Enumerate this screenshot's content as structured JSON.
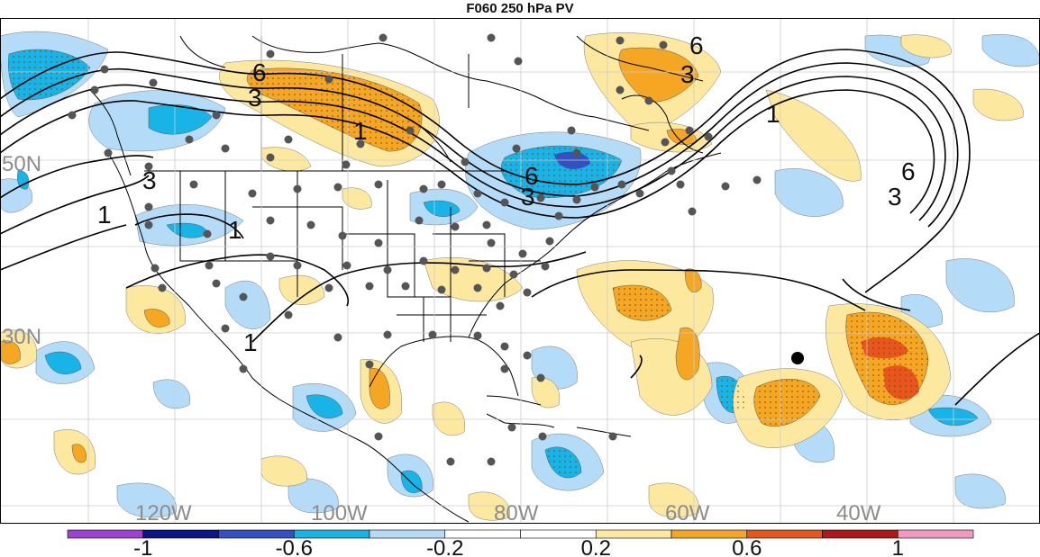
{
  "title": "F060 250 hPa PV",
  "latitude_labels": [
    "50N",
    "30N"
  ],
  "longitude_labels": [
    "120W",
    "100W",
    "80W",
    "60W",
    "40W"
  ],
  "contour_labels": [
    "6",
    "3",
    "6",
    "3",
    "1",
    "6",
    "3",
    "6",
    "3",
    "1",
    "3",
    "1",
    "1",
    "1"
  ],
  "colorbar": {
    "colors": [
      "#a040d8",
      "#0a148c",
      "#3450c8",
      "#18b4e8",
      "#b4dcf8",
      "#ffffff",
      "#ffffff",
      "#fde8a0",
      "#f5a623",
      "#e8561e",
      "#b01818",
      "#f598c0"
    ],
    "tick_labels": [
      "-1",
      "-0.6",
      "-0.2",
      "0.2",
      "0.6",
      "1"
    ]
  },
  "marker": {
    "color": "#000000"
  }
}
